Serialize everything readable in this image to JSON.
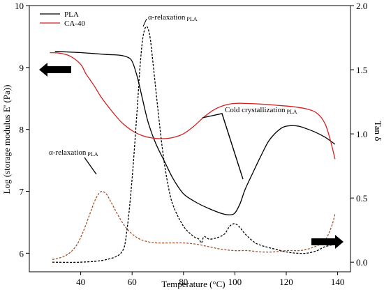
{
  "chart_data": {
    "type": "line",
    "xlabel": "Temperature (°C)",
    "ylabel": "Log (storage modulus E' (Pa))",
    "y2label": "Tan δ",
    "xlim": [
      20,
      145
    ],
    "ylim": [
      5.7,
      10
    ],
    "y2lim": [
      -0.075,
      2.0
    ],
    "xticks": [
      "40",
      "60",
      "80",
      "100",
      "120",
      "140"
    ],
    "yticks": [
      "6",
      "7",
      "8",
      "9",
      "10"
    ],
    "y2ticks": [
      "0.0",
      "0.5",
      "1.0",
      "1.5",
      "2.0"
    ],
    "xtick_values": [
      40,
      60,
      80,
      100,
      120,
      140
    ],
    "ytick_values": [
      6,
      7,
      8,
      9,
      10
    ],
    "y2tick_values": [
      0.0,
      0.5,
      1.0,
      1.5,
      2.0
    ],
    "legend": {
      "position": "top-left",
      "items": [
        {
          "label": "PLA",
          "color": "#000000"
        },
        {
          "label": "CA-40",
          "color": "#d42020"
        }
      ]
    },
    "series": [
      {
        "name": "PLA",
        "kind": "storage_modulus",
        "axis": "left",
        "color": "#000000",
        "style": "solid",
        "x": [
          30,
          40,
          50,
          55,
          58,
          60,
          62,
          64,
          66,
          68,
          70,
          73,
          76,
          80,
          85,
          90,
          95,
          98,
          100,
          102,
          104,
          107,
          110,
          113,
          116,
          119,
          122,
          125,
          128,
          131,
          134,
          136,
          139
        ],
        "y": [
          9.26,
          9.24,
          9.21,
          9.2,
          9.17,
          9.1,
          8.85,
          8.5,
          8.15,
          7.9,
          7.7,
          7.45,
          7.2,
          6.96,
          6.82,
          6.72,
          6.64,
          6.62,
          6.65,
          6.8,
          7.03,
          7.3,
          7.56,
          7.8,
          7.95,
          8.04,
          8.06,
          8.05,
          8.01,
          7.96,
          7.9,
          7.85,
          7.76
        ]
      },
      {
        "name": "CA-40",
        "kind": "storage_modulus",
        "axis": "left",
        "color": "#d42020",
        "style": "solid",
        "x": [
          28,
          32,
          36,
          40,
          42,
          45,
          48,
          52,
          56,
          60,
          64,
          68,
          72,
          76,
          80,
          84,
          88,
          92,
          96,
          100,
          104,
          110,
          116,
          122,
          128,
          132,
          135,
          137,
          139
        ],
        "y": [
          9.24,
          9.23,
          9.18,
          9.05,
          8.9,
          8.72,
          8.52,
          8.3,
          8.11,
          7.98,
          7.9,
          7.86,
          7.85,
          7.87,
          7.93,
          8.05,
          8.2,
          8.32,
          8.39,
          8.42,
          8.42,
          8.41,
          8.39,
          8.37,
          8.33,
          8.26,
          8.1,
          7.85,
          7.52
        ]
      },
      {
        "name": "PLA",
        "kind": "tan_delta",
        "axis": "right",
        "color": "#000000",
        "style": "dashed",
        "x": [
          29,
          40,
          50,
          56,
          58,
          60,
          62,
          63,
          64,
          65,
          66,
          67,
          68,
          70,
          72,
          74,
          76,
          80,
          84,
          86,
          87,
          88,
          90,
          93,
          96,
          98,
          100,
          102,
          104,
          108,
          112,
          116,
          120,
          124,
          128,
          132,
          135,
          139
        ],
        "y": [
          0.0,
          0.0,
          0.02,
          0.08,
          0.25,
          0.65,
          1.2,
          1.5,
          1.72,
          1.82,
          1.83,
          1.75,
          1.58,
          1.2,
          0.85,
          0.6,
          0.44,
          0.28,
          0.2,
          0.18,
          0.15,
          0.2,
          0.18,
          0.19,
          0.22,
          0.28,
          0.3,
          0.27,
          0.22,
          0.15,
          0.12,
          0.1,
          0.08,
          0.07,
          0.07,
          0.09,
          0.12,
          0.14
        ]
      },
      {
        "name": "CA-40",
        "kind": "tan_delta",
        "axis": "right",
        "color": "#a0522d",
        "style": "dashed",
        "x": [
          29,
          34,
          38,
          41,
          44,
          46,
          48,
          50,
          52,
          55,
          58,
          62,
          66,
          70,
          75,
          80,
          85,
          90,
          95,
          100,
          105,
          110,
          115,
          120,
          125,
          128,
          131,
          134,
          136,
          138,
          139
        ],
        "y": [
          0.02,
          0.05,
          0.12,
          0.24,
          0.4,
          0.5,
          0.55,
          0.53,
          0.46,
          0.35,
          0.26,
          0.19,
          0.16,
          0.15,
          0.15,
          0.15,
          0.14,
          0.12,
          0.1,
          0.09,
          0.09,
          0.08,
          0.08,
          0.09,
          0.09,
          0.1,
          0.12,
          0.15,
          0.2,
          0.3,
          0.38
        ]
      }
    ],
    "annotations": [
      {
        "name": "alpha-relaxation-pla-top",
        "text": "α-relaxation",
        "sub": "PLA"
      },
      {
        "name": "cold-crystallization-pla",
        "text": "Cold crystallization",
        "sub": "PLA"
      },
      {
        "name": "alpha-relaxation-pla-left",
        "text": "α-relaxation",
        "sub": "PLA"
      }
    ]
  }
}
